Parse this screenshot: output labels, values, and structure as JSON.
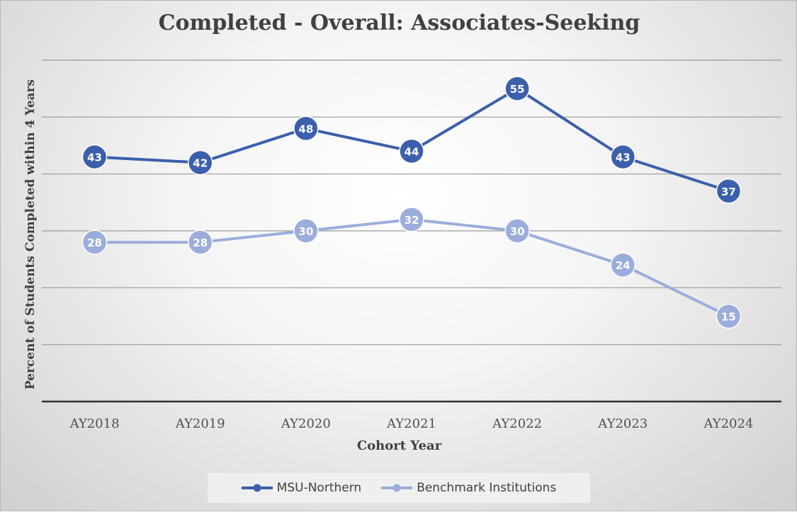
{
  "chart_data": {
    "type": "line",
    "title": "Completed - Overall: Associates-Seeking",
    "xlabel": "Cohort Year",
    "ylabel": "Percent of Students Completed within 4 Years",
    "categories": [
      "AY2018",
      "AY2019",
      "AY2020",
      "AY2021",
      "AY2022",
      "AY2023",
      "AY2024"
    ],
    "ylim": [
      0,
      60
    ],
    "y_gridline_step": 10,
    "y_tick_labels_shown": false,
    "grid": true,
    "legend_position": "bottom",
    "series": [
      {
        "name": "MSU-Northern",
        "color": "#3b5fab",
        "values": [
          43,
          42,
          48,
          44,
          55,
          43,
          37
        ]
      },
      {
        "name": "Benchmark Institutions",
        "color": "#9badda",
        "values": [
          28,
          28,
          30,
          32,
          30,
          24,
          15
        ]
      }
    ]
  }
}
